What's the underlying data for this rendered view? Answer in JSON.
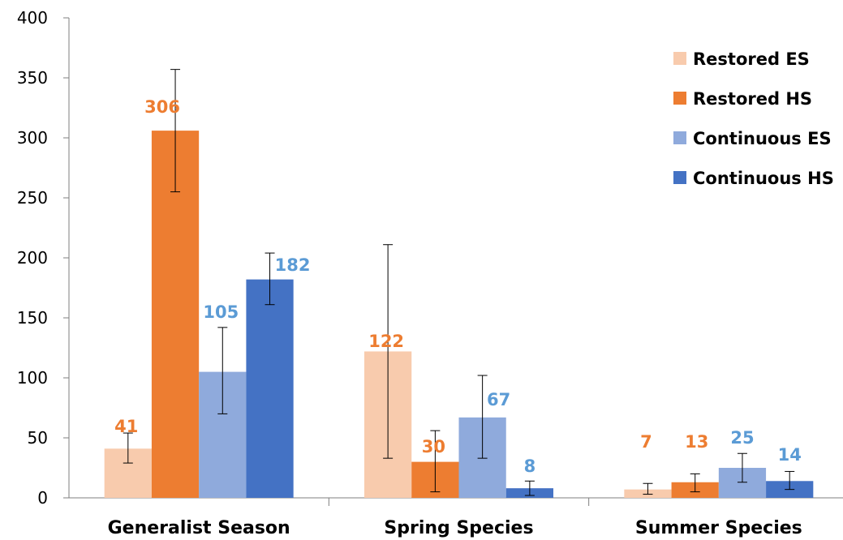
{
  "chart_data": {
    "type": "bar",
    "categories": [
      "Generalist Season",
      "Spring Species",
      "Summer Species"
    ],
    "ylim": [
      0,
      400
    ],
    "yticks": [
      0,
      50,
      100,
      150,
      200,
      250,
      300,
      350,
      400
    ],
    "grid": false,
    "legend_position": "top-right",
    "series": [
      {
        "name": "Restored ES",
        "color": "#f8cbad",
        "label_color": "#ed7d31",
        "values": [
          41,
          122,
          7
        ],
        "err_low": [
          29,
          33,
          3
        ],
        "err_high": [
          54,
          211,
          12
        ]
      },
      {
        "name": "Restored HS",
        "color": "#ed7d31",
        "label_color": "#ed7d31",
        "values": [
          306,
          30,
          13
        ],
        "err_low": [
          255,
          5,
          5
        ],
        "err_high": [
          357,
          56,
          20
        ]
      },
      {
        "name": "Continuous ES",
        "color": "#8faadc",
        "label_color": "#5b9bd5",
        "values": [
          105,
          67,
          25
        ],
        "err_low": [
          70,
          33,
          13
        ],
        "err_high": [
          142,
          102,
          37
        ]
      },
      {
        "name": "Continuous HS",
        "color": "#4472c4",
        "label_color": "#5b9bd5",
        "values": [
          182,
          8,
          14
        ],
        "err_low": [
          161,
          2,
          7
        ],
        "err_high": [
          204,
          14,
          22
        ]
      }
    ],
    "data_labels": [
      {
        "series": 0,
        "category": 0,
        "text": "41"
      },
      {
        "series": 1,
        "category": 0,
        "text": "306"
      },
      {
        "series": 2,
        "category": 0,
        "text": "105"
      },
      {
        "series": 3,
        "category": 0,
        "text": "182"
      },
      {
        "series": 0,
        "category": 1,
        "text": "122"
      },
      {
        "series": 1,
        "category": 1,
        "text": "30"
      },
      {
        "series": 2,
        "category": 1,
        "text": "67"
      },
      {
        "series": 3,
        "category": 1,
        "text": "8"
      },
      {
        "series": 0,
        "category": 2,
        "text": "7"
      },
      {
        "series": 1,
        "category": 2,
        "text": "13"
      },
      {
        "series": 2,
        "category": 2,
        "text": "25"
      },
      {
        "series": 3,
        "category": 2,
        "text": "14"
      }
    ]
  }
}
